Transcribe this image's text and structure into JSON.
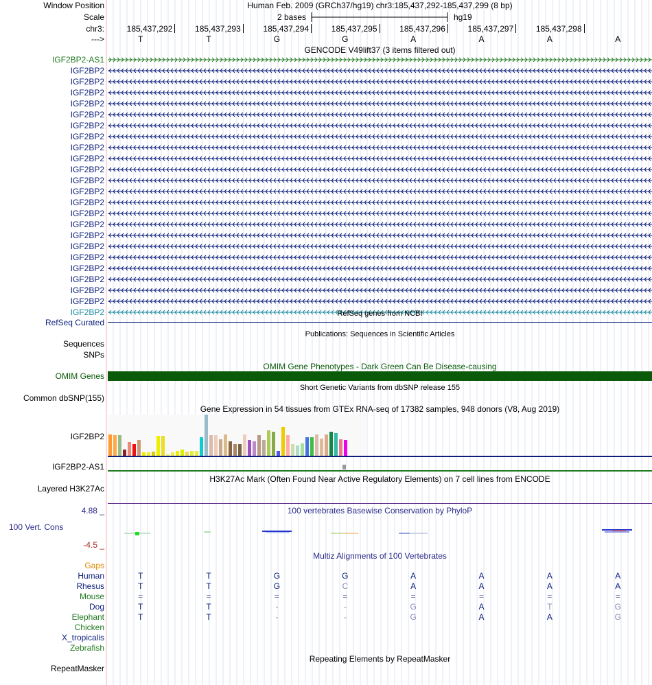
{
  "header": {
    "window_position_label": "Window Position",
    "window_position_text": "Human Feb. 2009 (GRCh37/hg19)   chr3:185,437,292-185,437,299 (8 bp)",
    "scale_label": "Scale",
    "scale_text": "2 bases",
    "scale_assembly": "hg19",
    "chrom_label": "chr3:",
    "strand_label": "--->",
    "coordinates": [
      "185,437,292",
      "185,437,293",
      "185,437,294",
      "185,437,295",
      "185,437,296",
      "185,437,297",
      "185,437,298"
    ],
    "bases": [
      "T",
      "T",
      "G",
      "G",
      "A",
      "A",
      "A",
      "A"
    ]
  },
  "gencode": {
    "title": "GENCODE V49lift37 (3 items filtered out)",
    "items": [
      {
        "name": "IGF2BP2-AS1",
        "color": "#207a20",
        "dir": "right"
      },
      {
        "name": "IGF2BP2",
        "color": "#0b1e7a",
        "dir": "left"
      },
      {
        "name": "IGF2BP2",
        "color": "#0b1e7a",
        "dir": "left"
      },
      {
        "name": "IGF2BP2",
        "color": "#0b1e7a",
        "dir": "left"
      },
      {
        "name": "IGF2BP2",
        "color": "#0b1e7a",
        "dir": "left"
      },
      {
        "name": "IGF2BP2",
        "color": "#0b1e7a",
        "dir": "left"
      },
      {
        "name": "IGF2BP2",
        "color": "#0b1e7a",
        "dir": "left"
      },
      {
        "name": "IGF2BP2",
        "color": "#0b1e7a",
        "dir": "left"
      },
      {
        "name": "IGF2BP2",
        "color": "#0b1e7a",
        "dir": "left"
      },
      {
        "name": "IGF2BP2",
        "color": "#0b1e7a",
        "dir": "left"
      },
      {
        "name": "IGF2BP2",
        "color": "#0b1e7a",
        "dir": "left"
      },
      {
        "name": "IGF2BP2",
        "color": "#0b1e7a",
        "dir": "left"
      },
      {
        "name": "IGF2BP2",
        "color": "#0b1e7a",
        "dir": "left"
      },
      {
        "name": "IGF2BP2",
        "color": "#0b1e7a",
        "dir": "left"
      },
      {
        "name": "IGF2BP2",
        "color": "#0b1e7a",
        "dir": "left"
      },
      {
        "name": "IGF2BP2",
        "color": "#0b1e7a",
        "dir": "left"
      },
      {
        "name": "IGF2BP2",
        "color": "#0b1e7a",
        "dir": "left"
      },
      {
        "name": "IGF2BP2",
        "color": "#0b1e7a",
        "dir": "left"
      },
      {
        "name": "IGF2BP2",
        "color": "#0b1e7a",
        "dir": "left"
      },
      {
        "name": "IGF2BP2",
        "color": "#0b1e7a",
        "dir": "left"
      },
      {
        "name": "IGF2BP2",
        "color": "#0b1e7a",
        "dir": "left"
      },
      {
        "name": "IGF2BP2",
        "color": "#0b1e7a",
        "dir": "left"
      },
      {
        "name": "IGF2BP2",
        "color": "#0b1e7a",
        "dir": "left"
      },
      {
        "name": "IGF2BP2",
        "color": "#1a8a9e",
        "dir": "left"
      }
    ]
  },
  "refseq": {
    "title": "RefSeq genes from NCBI",
    "label": "RefSeq Curated"
  },
  "publications": {
    "title": "Publications: Sequences in Scientific Articles",
    "label_line1": "Sequences",
    "label_line2": "SNPs"
  },
  "omim": {
    "title": "OMIM Gene Phenotypes - Dark Green Can Be Disease-causing",
    "label": "OMIM Genes",
    "color": "#0a5a0a"
  },
  "dbsnp": {
    "title": "Short Genetic Variants from dbSNP release 155",
    "label": "Common dbSNP(155)"
  },
  "gtex": {
    "title": "Gene Expression in 54 tissues from GTEx RNA-seq of 17382 samples, 948 donors (V8, Aug 2019)",
    "gene1": "IGF2BP2",
    "gene2": "IGF2BP2-AS1",
    "bars": [
      {
        "v": 0.52,
        "c": "#ff9933"
      },
      {
        "v": 0.5,
        "c": "#ffaa44"
      },
      {
        "v": 0.5,
        "c": "#99bb88"
      },
      {
        "v": 0.15,
        "c": "#882222"
      },
      {
        "v": 0.33,
        "c": "#ee8877"
      },
      {
        "v": 0.28,
        "c": "#ee1111"
      },
      {
        "v": 0.38,
        "c": "#cc9977"
      },
      {
        "v": 0.08,
        "c": "#eeee00"
      },
      {
        "v": 0.08,
        "c": "#eeee22"
      },
      {
        "v": 0.1,
        "c": "#ddcc00"
      },
      {
        "v": 0.48,
        "c": "#eeee00"
      },
      {
        "v": 0.48,
        "c": "#eedd22"
      },
      {
        "v": 0.04,
        "c": "#eeee66"
      },
      {
        "v": 0.08,
        "c": "#eeee44"
      },
      {
        "v": 0.12,
        "c": "#eeee00"
      },
      {
        "v": 0.15,
        "c": "#ddee00"
      },
      {
        "v": 0.1,
        "c": "#eedd44"
      },
      {
        "v": 0.12,
        "c": "#ddee44"
      },
      {
        "v": 0.12,
        "c": "#eeee33"
      },
      {
        "v": 0.45,
        "c": "#11cccc"
      },
      {
        "v": 1.0,
        "c": "#99bbcc"
      },
      {
        "v": 0.5,
        "c": "#ddbbaa"
      },
      {
        "v": 0.5,
        "c": "#eeccbb"
      },
      {
        "v": 0.4,
        "c": "#ccaa88"
      },
      {
        "v": 0.52,
        "c": "#ddbb88"
      },
      {
        "v": 0.35,
        "c": "#886644"
      },
      {
        "v": 0.28,
        "c": "#aa8866"
      },
      {
        "v": 0.28,
        "c": "#776644"
      },
      {
        "v": 0.52,
        "c": "#eeccbb"
      },
      {
        "v": 0.38,
        "c": "#9955bb"
      },
      {
        "v": 0.35,
        "c": "#bb88cc"
      },
      {
        "v": 0.5,
        "c": "#bb9988"
      },
      {
        "v": 0.38,
        "c": "#bbaa99"
      },
      {
        "v": 0.62,
        "c": "#aacc55"
      },
      {
        "v": 0.58,
        "c": "#88aa44"
      },
      {
        "v": 0.12,
        "c": "#5555ee"
      },
      {
        "v": 0.7,
        "c": "#eecc00"
      },
      {
        "v": 0.5,
        "c": "#ffaaaa"
      },
      {
        "v": 0.28,
        "c": "#ccddaa"
      },
      {
        "v": 0.25,
        "c": "#aaddcc"
      },
      {
        "v": 0.3,
        "c": "#aadd99"
      },
      {
        "v": 0.45,
        "c": "#4477dd"
      },
      {
        "v": 0.45,
        "c": "#44bb44"
      },
      {
        "v": 0.52,
        "c": "#ddbbaa"
      },
      {
        "v": 0.42,
        "c": "#ddbb99"
      },
      {
        "v": 0.52,
        "c": "#ddaa88"
      },
      {
        "v": 0.58,
        "c": "#118844"
      },
      {
        "v": 0.55,
        "c": "#33bbaa"
      },
      {
        "v": 0.4,
        "c": "#ee7788"
      },
      {
        "v": 0.38,
        "c": "#ee00ee"
      }
    ]
  },
  "h3k27ac": {
    "title": "H3K27Ac Mark (Often Found Near Active Regulatory Elements) on 7 cell lines from ENCODE",
    "label": "Layered H3K27Ac"
  },
  "conservation": {
    "title": "100 vertebrates Basewise Conservation by PhyloP",
    "label": "100 Vert. Cons",
    "max_label": "4.88 _",
    "min_label": "-4.5 _"
  },
  "multiz": {
    "title": "Multiz Alignments of 100 Vertebrates",
    "gaps_label": "Gaps",
    "species": [
      {
        "name": "Human",
        "color": "#0b1e7a",
        "bases": [
          "T",
          "T",
          "G",
          "G",
          "A",
          "A",
          "A",
          "A"
        ],
        "dim": [
          false,
          false,
          false,
          false,
          false,
          false,
          false,
          false
        ]
      },
      {
        "name": "Rhesus",
        "color": "#0b1e7a",
        "bases": [
          "T",
          "T",
          "G",
          "C",
          "A",
          "A",
          "A",
          "A"
        ],
        "dim": [
          false,
          false,
          false,
          true,
          false,
          false,
          false,
          false
        ]
      },
      {
        "name": "Mouse",
        "color": "#207a20",
        "bases": [
          "=",
          "=",
          "=",
          "=",
          "=",
          "=",
          "=",
          "="
        ],
        "dim": [
          true,
          true,
          true,
          true,
          true,
          true,
          true,
          true
        ]
      },
      {
        "name": "Dog",
        "color": "#0b1e7a",
        "bases": [
          "T",
          "T",
          "-",
          "-",
          "G",
          "A",
          "T",
          "G"
        ],
        "dim": [
          false,
          false,
          true,
          true,
          true,
          false,
          true,
          true
        ]
      },
      {
        "name": "Elephant",
        "color": "#207a20",
        "bases": [
          "T",
          "T",
          "-",
          "-",
          "G",
          "A",
          "A",
          "G"
        ],
        "dim": [
          false,
          false,
          true,
          true,
          true,
          false,
          false,
          true
        ]
      },
      {
        "name": "Chicken",
        "color": "#207a20",
        "bases": [
          "",
          "",
          "",
          "",
          "",
          "",
          "",
          ""
        ],
        "dim": [
          false,
          false,
          false,
          false,
          false,
          false,
          false,
          false
        ]
      },
      {
        "name": "X_tropicalis",
        "color": "#0b1e7a",
        "bases": [
          "",
          "",
          "",
          "",
          "",
          "",
          "",
          ""
        ],
        "dim": [
          false,
          false,
          false,
          false,
          false,
          false,
          false,
          false
        ]
      },
      {
        "name": "Zebrafish",
        "color": "#207a20",
        "bases": [
          "",
          "",
          "",
          "",
          "",
          "",
          "",
          ""
        ],
        "dim": [
          false,
          false,
          false,
          false,
          false,
          false,
          false,
          false
        ]
      }
    ]
  },
  "repeatmasker": {
    "title": "Repeating Elements by RepeatMasker",
    "label": "RepeatMasker"
  }
}
